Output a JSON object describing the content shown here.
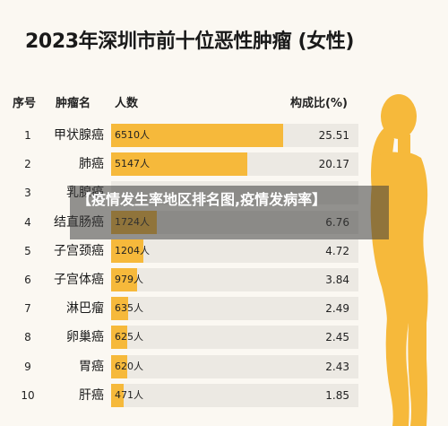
{
  "title": "2023年深圳市前十位恶性肿瘤 (女性)",
  "headers": {
    "rank": "序号",
    "name": "肿瘤名",
    "count": "人数",
    "ratio": "构成比(%)"
  },
  "overlay_text": "【疫情发生率地区排名图,疫情发病率】",
  "colors": {
    "bar": "#f6b93b",
    "track": "#ece9e3",
    "silhouette": "#f6b93b"
  },
  "chart_data": {
    "type": "bar",
    "title": "2023年深圳市前十位恶性肿瘤 (女性)",
    "ranks": [
      "1",
      "2",
      "3",
      "4",
      "5",
      "6",
      "7",
      "8",
      "9",
      "10"
    ],
    "categories": [
      "甲状腺癌",
      "肺癌",
      "乳腺癌",
      "结直肠癌",
      "子宫颈癌",
      "子宫体癌",
      "淋巴瘤",
      "卵巢癌",
      "胃癌",
      "肝癌"
    ],
    "values": [
      6510,
      5147,
      null,
      1724,
      1204,
      979,
      635,
      625,
      620,
      471
    ],
    "value_labels": [
      "6510人",
      "5147人",
      "",
      "1724人",
      "1204人",
      "979人",
      "635人",
      "625人",
      "620人",
      "471人"
    ],
    "ratios": [
      "25.51",
      "20.17",
      "",
      "6.76",
      "4.72",
      "3.84",
      "2.49",
      "2.45",
      "2.43",
      "1.85"
    ],
    "xlim": [
      0,
      6510
    ]
  }
}
